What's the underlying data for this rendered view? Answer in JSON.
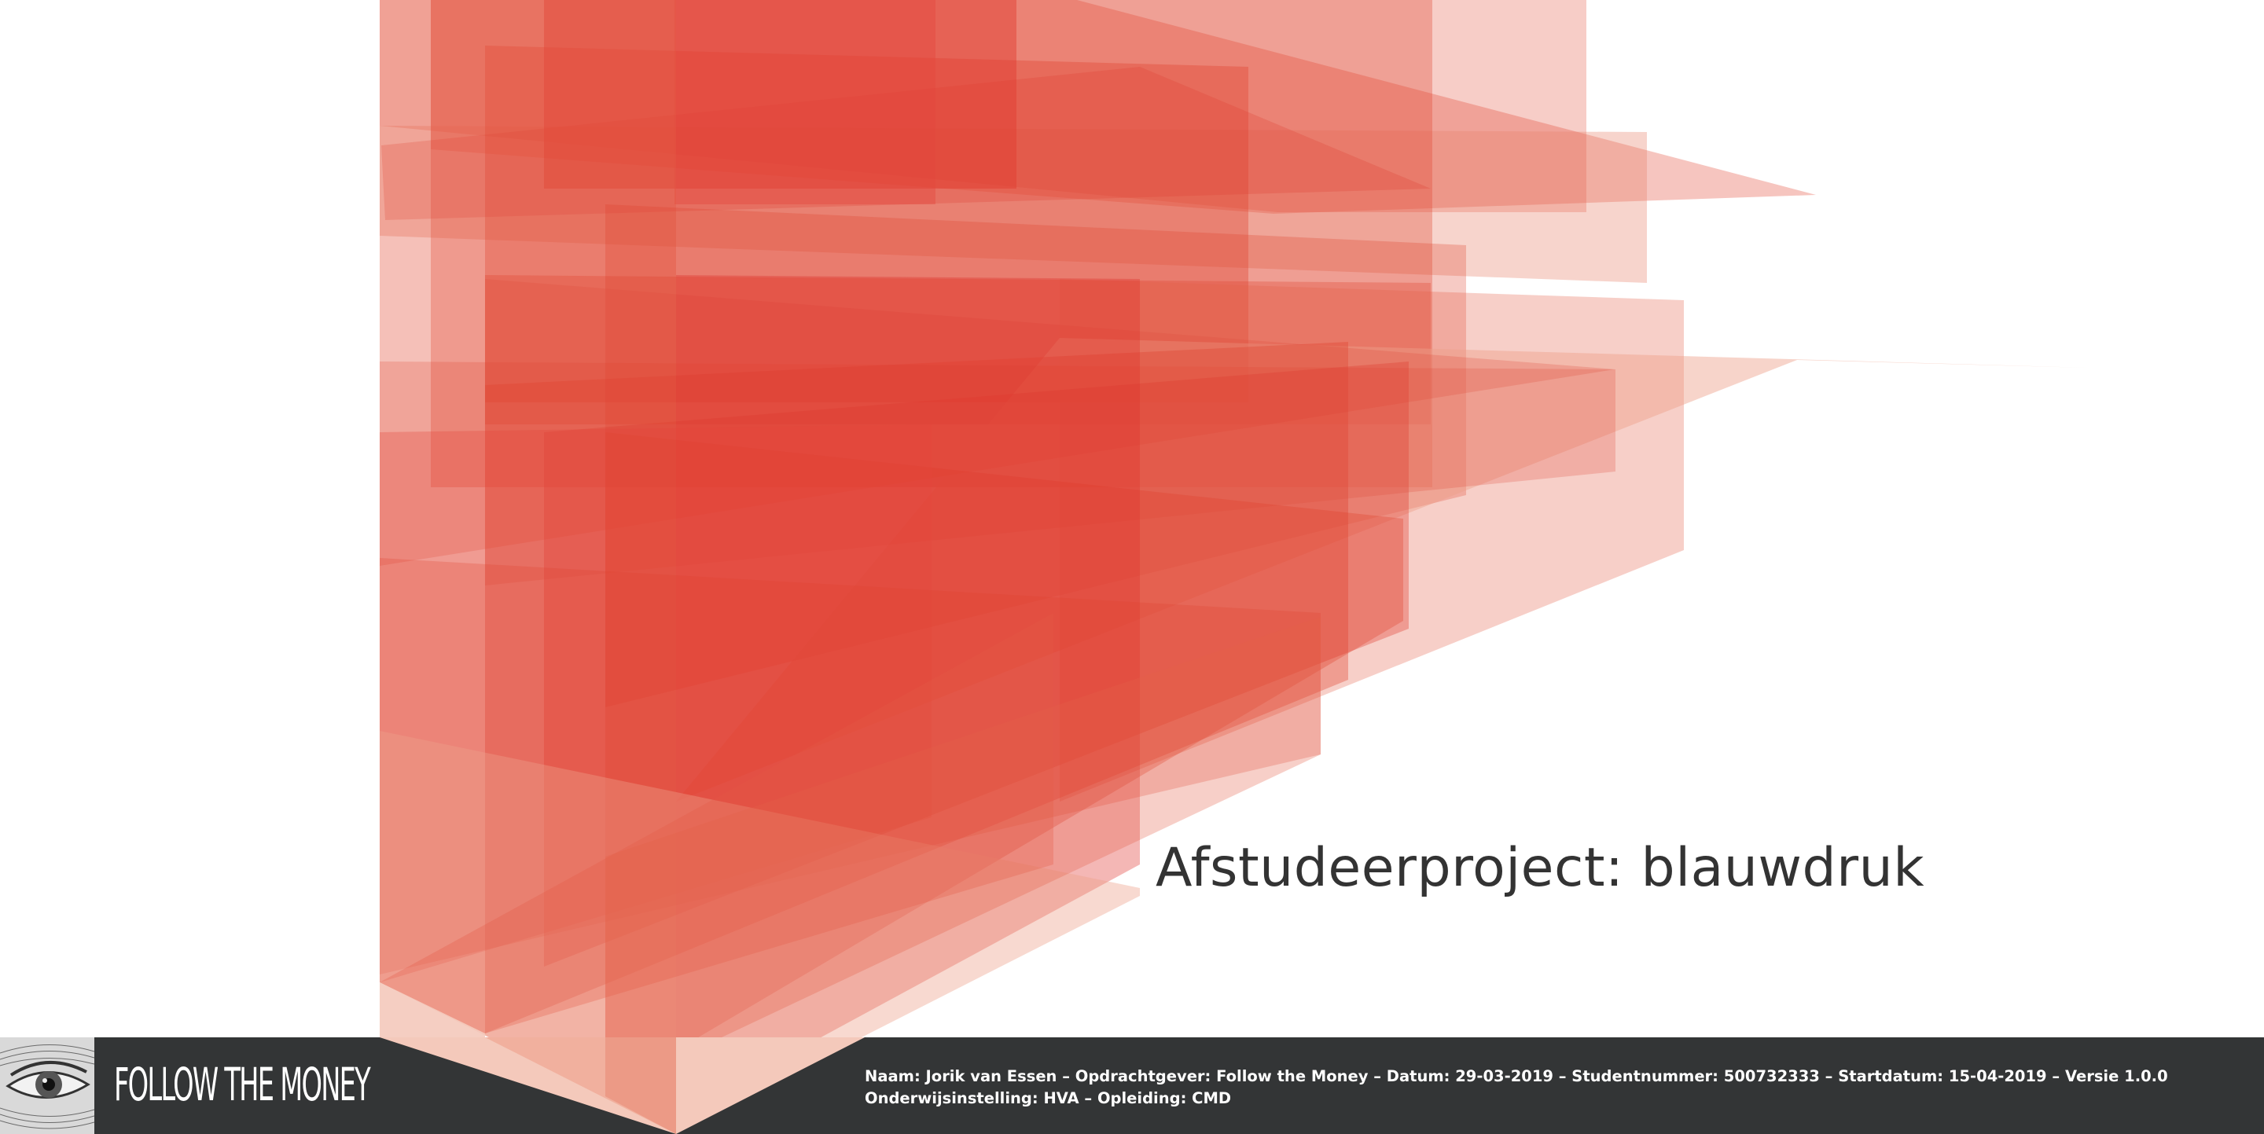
{
  "cover": {
    "title": "Afstudeerproject: blauwdruk",
    "accent_color": "#e0302a",
    "art_label": "red-translucent-planes-artwork"
  },
  "footer": {
    "background_color": "#333536",
    "logo_text": "FOLLOW THE MONEY",
    "logo_icon": "engraved-eye-icon",
    "meta_line_1": "Naam: Jorik van Essen – Opdrachtgever: Follow the Money – Datum: 29-03-2019 – Studentnummer: 500732333 – Startdatum: 15-04-2019 – Versie 1.0.0",
    "meta_line_2": "Onderwijsinstelling: HVA – Opleiding: CMD"
  }
}
